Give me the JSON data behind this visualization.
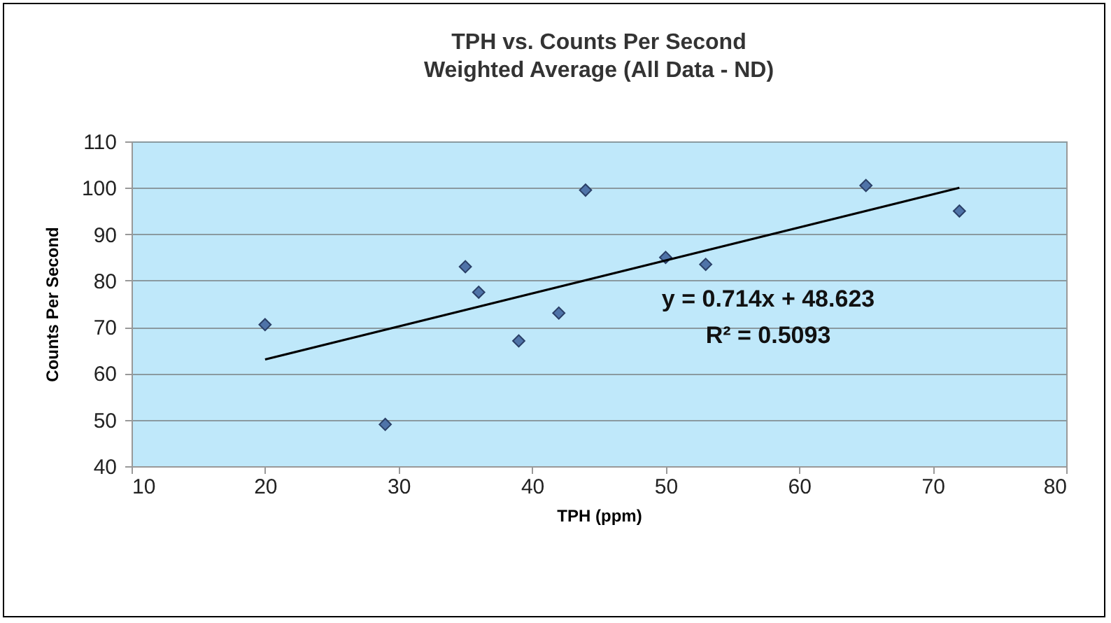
{
  "chart_data": {
    "type": "scatter",
    "title": "TPH vs. Counts Per Second",
    "subtitle": "Weighted Average (All Data - ND)",
    "xlabel": "TPH (ppm)",
    "ylabel": "Counts Per Second",
    "series": [
      {
        "color": "#4f73a8",
        "marker": "diamond",
        "x": [
          20,
          29,
          35,
          36,
          39,
          42,
          44,
          50,
          53,
          65,
          72
        ],
        "values": [
          70.5,
          49,
          83,
          77.5,
          67,
          73,
          99.5,
          85,
          83.5,
          100.5,
          95
        ]
      },
      {
        "type": "line",
        "color": "#000000",
        "x": [
          20,
          72
        ],
        "values": [
          63,
          100
        ]
      }
    ],
    "xlim": [
      10,
      80
    ],
    "xticks": [
      10,
      20,
      30,
      40,
      50,
      60,
      70,
      80
    ],
    "ylim": [
      40,
      110
    ],
    "yticks": [
      40,
      50,
      60,
      70,
      80,
      90,
      100,
      110
    ],
    "grid": "y",
    "annotations": [
      "y = 0.714x + 48.623",
      "R² = 0.5093"
    ]
  }
}
